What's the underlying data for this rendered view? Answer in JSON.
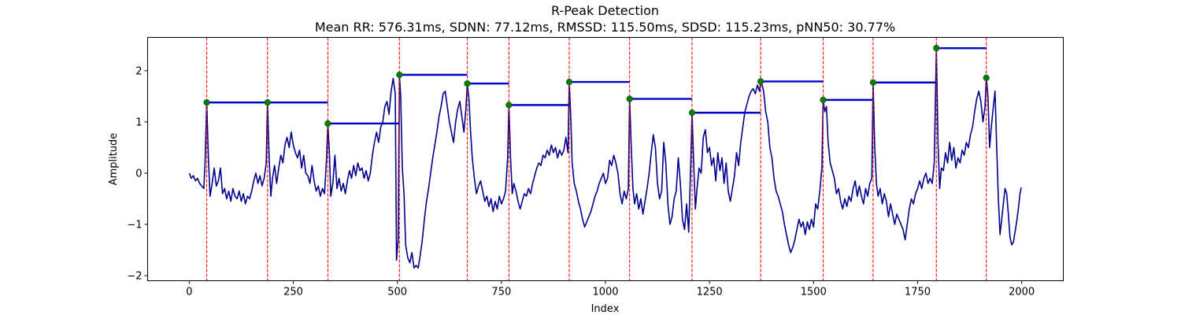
{
  "chart_data": {
    "type": "line",
    "title": "R-Peak Detection",
    "subtitle": "Mean RR: 576.31ms, SDNN: 77.12ms, RMSSD: 115.50ms, SDSD: 115.23ms, pNN50: 30.77%",
    "xlabel": "Index",
    "ylabel": "Amplitude",
    "xlim": [
      -100,
      2100
    ],
    "ylim": [
      -2.1,
      2.65
    ],
    "xticks": [
      0,
      250,
      500,
      750,
      1000,
      1250,
      1500,
      1750,
      2000
    ],
    "yticks": [
      -2,
      -1,
      0,
      1,
      2
    ],
    "grid": false,
    "colors": {
      "signal": "#00008b",
      "peak_line": "#ff0000",
      "peak_marker": "#008000",
      "rr_segment": "#0000cd"
    },
    "signal_key_points": [
      [
        0,
        0.0
      ],
      [
        5,
        -0.1
      ],
      [
        10,
        -0.05
      ],
      [
        15,
        -0.15
      ],
      [
        20,
        -0.1
      ],
      [
        25,
        -0.2
      ],
      [
        30,
        -0.25
      ],
      [
        35,
        -0.3
      ],
      [
        38,
        0.2
      ],
      [
        42,
        1.38
      ],
      [
        46,
        0.3
      ],
      [
        50,
        -0.45
      ],
      [
        55,
        -0.2
      ],
      [
        60,
        0.1
      ],
      [
        65,
        -0.25
      ],
      [
        70,
        -0.15
      ],
      [
        75,
        0.1
      ],
      [
        80,
        -0.4
      ],
      [
        85,
        -0.3
      ],
      [
        90,
        -0.5
      ],
      [
        95,
        -0.35
      ],
      [
        100,
        -0.55
      ],
      [
        105,
        -0.3
      ],
      [
        110,
        -0.45
      ],
      [
        115,
        -0.5
      ],
      [
        120,
        -0.35
      ],
      [
        125,
        -0.55
      ],
      [
        130,
        -0.4
      ],
      [
        135,
        -0.6
      ],
      [
        140,
        -0.45
      ],
      [
        145,
        -0.5
      ],
      [
        150,
        -0.35
      ],
      [
        155,
        -0.15
      ],
      [
        160,
        0.0
      ],
      [
        165,
        -0.2
      ],
      [
        170,
        -0.05
      ],
      [
        175,
        -0.25
      ],
      [
        180,
        -0.1
      ],
      [
        185,
        0.2
      ],
      [
        188,
        1.38
      ],
      [
        192,
        0.3
      ],
      [
        196,
        -0.45
      ],
      [
        200,
        -0.1
      ],
      [
        205,
        0.15
      ],
      [
        210,
        -0.2
      ],
      [
        215,
        0.1
      ],
      [
        220,
        0.35
      ],
      [
        225,
        0.2
      ],
      [
        230,
        0.55
      ],
      [
        235,
        0.7
      ],
      [
        240,
        0.5
      ],
      [
        245,
        0.8
      ],
      [
        250,
        0.55
      ],
      [
        255,
        0.4
      ],
      [
        260,
        0.3
      ],
      [
        265,
        0.45
      ],
      [
        270,
        0.1
      ],
      [
        275,
        0.35
      ],
      [
        280,
        0.0
      ],
      [
        285,
        -0.05
      ],
      [
        290,
        -0.2
      ],
      [
        295,
        0.15
      ],
      [
        300,
        -0.15
      ],
      [
        305,
        -0.35
      ],
      [
        310,
        -0.25
      ],
      [
        315,
        -0.45
      ],
      [
        320,
        -0.3
      ],
      [
        325,
        -0.4
      ],
      [
        330,
        0.3
      ],
      [
        333,
        0.97
      ],
      [
        337,
        0.35
      ],
      [
        340,
        -0.45
      ],
      [
        345,
        -0.2
      ],
      [
        350,
        0.35
      ],
      [
        355,
        -0.3
      ],
      [
        360,
        -0.1
      ],
      [
        365,
        -0.35
      ],
      [
        370,
        -0.2
      ],
      [
        375,
        -0.4
      ],
      [
        380,
        -0.15
      ],
      [
        385,
        0.05
      ],
      [
        390,
        -0.1
      ],
      [
        395,
        0.15
      ],
      [
        400,
        -0.05
      ],
      [
        405,
        0.2
      ],
      [
        410,
        0.05
      ],
      [
        415,
        0.1
      ],
      [
        420,
        -0.1
      ],
      [
        425,
        0.05
      ],
      [
        430,
        -0.15
      ],
      [
        435,
        0.0
      ],
      [
        440,
        0.35
      ],
      [
        445,
        0.6
      ],
      [
        450,
        0.8
      ],
      [
        455,
        0.6
      ],
      [
        460,
        0.9
      ],
      [
        465,
        1.0
      ],
      [
        470,
        1.3
      ],
      [
        475,
        1.4
      ],
      [
        480,
        1.15
      ],
      [
        485,
        1.6
      ],
      [
        490,
        1.85
      ],
      [
        495,
        1.55
      ],
      [
        498,
        -1.7
      ],
      [
        502,
        -1.3
      ],
      [
        505,
        1.92
      ],
      [
        508,
        1.5
      ],
      [
        512,
        0.1
      ],
      [
        516,
        -0.4
      ],
      [
        520,
        -1.4
      ],
      [
        525,
        -1.65
      ],
      [
        530,
        -1.75
      ],
      [
        535,
        -1.55
      ],
      [
        540,
        -1.85
      ],
      [
        545,
        -1.8
      ],
      [
        550,
        -1.85
      ],
      [
        555,
        -1.6
      ],
      [
        560,
        -1.3
      ],
      [
        565,
        -0.9
      ],
      [
        570,
        -0.55
      ],
      [
        575,
        -0.3
      ],
      [
        580,
        0.0
      ],
      [
        585,
        0.3
      ],
      [
        590,
        0.55
      ],
      [
        595,
        0.8
      ],
      [
        600,
        1.1
      ],
      [
        605,
        1.3
      ],
      [
        610,
        1.55
      ],
      [
        615,
        1.6
      ],
      [
        620,
        1.3
      ],
      [
        625,
        1.0
      ],
      [
        630,
        0.8
      ],
      [
        635,
        0.6
      ],
      [
        640,
        1.0
      ],
      [
        645,
        1.25
      ],
      [
        650,
        1.4
      ],
      [
        655,
        1.1
      ],
      [
        660,
        0.8
      ],
      [
        665,
        1.3
      ],
      [
        668,
        1.75
      ],
      [
        672,
        1.45
      ],
      [
        676,
        0.8
      ],
      [
        680,
        0.3
      ],
      [
        685,
        -0.1
      ],
      [
        690,
        -0.4
      ],
      [
        695,
        -0.25
      ],
      [
        700,
        -0.15
      ],
      [
        705,
        -0.35
      ],
      [
        710,
        -0.55
      ],
      [
        715,
        -0.45
      ],
      [
        720,
        -0.65
      ],
      [
        725,
        -0.5
      ],
      [
        730,
        -0.75
      ],
      [
        735,
        -0.55
      ],
      [
        740,
        -0.7
      ],
      [
        745,
        -0.45
      ],
      [
        750,
        -0.6
      ],
      [
        755,
        -0.5
      ],
      [
        760,
        -0.35
      ],
      [
        765,
        0.3
      ],
      [
        768,
        1.33
      ],
      [
        772,
        0.3
      ],
      [
        776,
        -0.4
      ],
      [
        780,
        -0.2
      ],
      [
        785,
        -0.35
      ],
      [
        790,
        -0.55
      ],
      [
        795,
        -0.7
      ],
      [
        800,
        -0.55
      ],
      [
        805,
        -0.4
      ],
      [
        810,
        -0.45
      ],
      [
        815,
        -0.3
      ],
      [
        820,
        -0.4
      ],
      [
        825,
        -0.2
      ],
      [
        830,
        -0.05
      ],
      [
        835,
        0.1
      ],
      [
        840,
        0.2
      ],
      [
        845,
        0.15
      ],
      [
        850,
        0.35
      ],
      [
        855,
        0.3
      ],
      [
        860,
        0.45
      ],
      [
        865,
        0.35
      ],
      [
        870,
        0.55
      ],
      [
        875,
        0.4
      ],
      [
        880,
        0.5
      ],
      [
        885,
        0.3
      ],
      [
        890,
        0.45
      ],
      [
        895,
        0.35
      ],
      [
        900,
        0.45
      ],
      [
        905,
        0.7
      ],
      [
        910,
        0.4
      ],
      [
        913,
        1.78
      ],
      [
        917,
        1.0
      ],
      [
        920,
        0.2
      ],
      [
        925,
        -0.2
      ],
      [
        930,
        -0.35
      ],
      [
        935,
        -0.55
      ],
      [
        940,
        -0.7
      ],
      [
        945,
        -0.9
      ],
      [
        950,
        -1.05
      ],
      [
        955,
        -0.95
      ],
      [
        960,
        -0.85
      ],
      [
        965,
        -0.75
      ],
      [
        970,
        -0.6
      ],
      [
        975,
        -0.45
      ],
      [
        980,
        -0.35
      ],
      [
        985,
        -0.2
      ],
      [
        990,
        -0.1
      ],
      [
        995,
        0.0
      ],
      [
        1000,
        -0.2
      ],
      [
        1005,
        -0.1
      ],
      [
        1010,
        0.25
      ],
      [
        1015,
        0.15
      ],
      [
        1020,
        0.35
      ],
      [
        1025,
        0.2
      ],
      [
        1030,
        0.0
      ],
      [
        1035,
        -0.4
      ],
      [
        1040,
        -0.6
      ],
      [
        1045,
        -0.35
      ],
      [
        1050,
        -0.5
      ],
      [
        1055,
        -0.3
      ],
      [
        1058,
        1.45
      ],
      [
        1062,
        0.5
      ],
      [
        1066,
        -0.3
      ],
      [
        1070,
        -0.6
      ],
      [
        1075,
        -0.4
      ],
      [
        1080,
        -0.7
      ],
      [
        1085,
        -0.5
      ],
      [
        1090,
        -0.8
      ],
      [
        1095,
        -0.55
      ],
      [
        1100,
        -0.3
      ],
      [
        1105,
        0.0
      ],
      [
        1110,
        0.4
      ],
      [
        1115,
        0.75
      ],
      [
        1120,
        0.5
      ],
      [
        1125,
        -0.2
      ],
      [
        1130,
        -0.5
      ],
      [
        1135,
        -0.35
      ],
      [
        1140,
        0.6
      ],
      [
        1145,
        0.2
      ],
      [
        1150,
        -0.6
      ],
      [
        1155,
        -1.0
      ],
      [
        1160,
        -0.85
      ],
      [
        1165,
        -0.5
      ],
      [
        1170,
        -0.35
      ],
      [
        1175,
        0.3
      ],
      [
        1180,
        -0.2
      ],
      [
        1185,
        -0.9
      ],
      [
        1190,
        -1.1
      ],
      [
        1195,
        -0.6
      ],
      [
        1200,
        -1.15
      ],
      [
        1205,
        0.2
      ],
      [
        1208,
        1.18
      ],
      [
        1212,
        0.2
      ],
      [
        1216,
        -0.7
      ],
      [
        1220,
        -0.3
      ],
      [
        1225,
        0.1
      ],
      [
        1230,
        0.0
      ],
      [
        1235,
        0.7
      ],
      [
        1240,
        0.85
      ],
      [
        1245,
        0.4
      ],
      [
        1250,
        0.5
      ],
      [
        1255,
        0.15
      ],
      [
        1260,
        0.3
      ],
      [
        1265,
        -0.15
      ],
      [
        1270,
        0.4
      ],
      [
        1275,
        0.05
      ],
      [
        1280,
        0.3
      ],
      [
        1285,
        -0.2
      ],
      [
        1290,
        0.2
      ],
      [
        1295,
        -0.35
      ],
      [
        1300,
        -0.55
      ],
      [
        1305,
        -0.3
      ],
      [
        1310,
        -0.05
      ],
      [
        1315,
        0.4
      ],
      [
        1320,
        0.15
      ],
      [
        1325,
        0.6
      ],
      [
        1330,
        0.9
      ],
      [
        1335,
        1.2
      ],
      [
        1340,
        1.35
      ],
      [
        1345,
        1.5
      ],
      [
        1350,
        1.6
      ],
      [
        1355,
        1.65
      ],
      [
        1360,
        1.55
      ],
      [
        1365,
        1.72
      ],
      [
        1370,
        1.6
      ],
      [
        1373,
        1.79
      ],
      [
        1377,
        1.7
      ],
      [
        1380,
        1.6
      ],
      [
        1385,
        1.2
      ],
      [
        1390,
        1.0
      ],
      [
        1395,
        0.5
      ],
      [
        1400,
        0.3
      ],
      [
        1405,
        -0.1
      ],
      [
        1410,
        -0.35
      ],
      [
        1415,
        -0.45
      ],
      [
        1420,
        -0.6
      ],
      [
        1425,
        -0.75
      ],
      [
        1430,
        -1.0
      ],
      [
        1435,
        -1.2
      ],
      [
        1440,
        -1.4
      ],
      [
        1445,
        -1.55
      ],
      [
        1450,
        -1.45
      ],
      [
        1455,
        -1.3
      ],
      [
        1460,
        -1.1
      ],
      [
        1465,
        -0.9
      ],
      [
        1470,
        -1.05
      ],
      [
        1475,
        -0.95
      ],
      [
        1480,
        -1.2
      ],
      [
        1485,
        -0.95
      ],
      [
        1490,
        -1.1
      ],
      [
        1495,
        -0.9
      ],
      [
        1500,
        -1.05
      ],
      [
        1505,
        -0.6
      ],
      [
        1510,
        -0.7
      ],
      [
        1515,
        -0.35
      ],
      [
        1520,
        0.1
      ],
      [
        1523,
        1.43
      ],
      [
        1527,
        1.2
      ],
      [
        1531,
        1.3
      ],
      [
        1535,
        0.6
      ],
      [
        1540,
        0.2
      ],
      [
        1545,
        0.05
      ],
      [
        1550,
        -0.1
      ],
      [
        1555,
        -0.4
      ],
      [
        1560,
        -0.3
      ],
      [
        1565,
        -0.55
      ],
      [
        1570,
        -0.7
      ],
      [
        1575,
        -0.5
      ],
      [
        1580,
        -0.65
      ],
      [
        1585,
        -0.45
      ],
      [
        1590,
        -0.55
      ],
      [
        1595,
        -0.3
      ],
      [
        1600,
        -0.15
      ],
      [
        1605,
        -0.45
      ],
      [
        1610,
        -0.25
      ],
      [
        1615,
        -0.45
      ],
      [
        1620,
        -0.6
      ],
      [
        1625,
        -0.3
      ],
      [
        1630,
        -0.45
      ],
      [
        1635,
        -0.2
      ],
      [
        1640,
        -0.1
      ],
      [
        1643,
        1.77
      ],
      [
        1647,
        0.5
      ],
      [
        1651,
        -0.2
      ],
      [
        1655,
        -0.45
      ],
      [
        1660,
        -0.3
      ],
      [
        1665,
        -0.6
      ],
      [
        1670,
        -0.4
      ],
      [
        1675,
        -0.55
      ],
      [
        1680,
        -0.85
      ],
      [
        1685,
        -0.6
      ],
      [
        1690,
        -0.8
      ],
      [
        1695,
        -1.0
      ],
      [
        1700,
        -0.8
      ],
      [
        1705,
        -0.9
      ],
      [
        1710,
        -1.0
      ],
      [
        1715,
        -1.1
      ],
      [
        1720,
        -1.3
      ],
      [
        1725,
        -1.0
      ],
      [
        1730,
        -0.7
      ],
      [
        1735,
        -0.5
      ],
      [
        1740,
        -0.6
      ],
      [
        1745,
        -0.4
      ],
      [
        1750,
        -0.3
      ],
      [
        1755,
        -0.15
      ],
      [
        1760,
        -0.3
      ],
      [
        1765,
        -0.1
      ],
      [
        1770,
        0.0
      ],
      [
        1775,
        -0.2
      ],
      [
        1780,
        -0.1
      ],
      [
        1785,
        -0.2
      ],
      [
        1790,
        0.2
      ],
      [
        1795,
        2.44
      ],
      [
        1799,
        0.6
      ],
      [
        1803,
        -0.3
      ],
      [
        1807,
        0.1
      ],
      [
        1812,
        0.05
      ],
      [
        1817,
        0.4
      ],
      [
        1822,
        0.2
      ],
      [
        1827,
        0.6
      ],
      [
        1832,
        0.25
      ],
      [
        1837,
        0.5
      ],
      [
        1842,
        0.1
      ],
      [
        1847,
        0.3
      ],
      [
        1852,
        0.2
      ],
      [
        1857,
        0.45
      ],
      [
        1862,
        0.35
      ],
      [
        1867,
        0.6
      ],
      [
        1872,
        0.5
      ],
      [
        1877,
        0.75
      ],
      [
        1882,
        0.9
      ],
      [
        1887,
        1.2
      ],
      [
        1892,
        1.45
      ],
      [
        1897,
        1.6
      ],
      [
        1902,
        1.4
      ],
      [
        1907,
        1.0
      ],
      [
        1912,
        1.3
      ],
      [
        1915,
        1.86
      ],
      [
        1919,
        1.5
      ],
      [
        1923,
        0.5
      ],
      [
        1927,
        0.9
      ],
      [
        1932,
        1.3
      ],
      [
        1936,
        1.6
      ],
      [
        1940,
        0.5
      ],
      [
        1944,
        -0.5
      ],
      [
        1948,
        -1.2
      ],
      [
        1952,
        -0.9
      ],
      [
        1956,
        -0.6
      ],
      [
        1960,
        -0.3
      ],
      [
        1964,
        -0.4
      ],
      [
        1968,
        -0.8
      ],
      [
        1972,
        -1.25
      ],
      [
        1976,
        -1.4
      ],
      [
        1980,
        -1.35
      ],
      [
        1984,
        -1.15
      ],
      [
        1988,
        -0.95
      ],
      [
        1992,
        -0.7
      ],
      [
        1996,
        -0.4
      ],
      [
        1999,
        -0.28
      ]
    ],
    "r_peaks": [
      {
        "x": 42,
        "y": 1.38
      },
      {
        "x": 188,
        "y": 1.38
      },
      {
        "x": 333,
        "y": 0.97
      },
      {
        "x": 505,
        "y": 1.92
      },
      {
        "x": 668,
        "y": 1.75
      },
      {
        "x": 768,
        "y": 1.33
      },
      {
        "x": 913,
        "y": 1.78
      },
      {
        "x": 1058,
        "y": 1.45
      },
      {
        "x": 1208,
        "y": 1.18
      },
      {
        "x": 1373,
        "y": 1.79
      },
      {
        "x": 1523,
        "y": 1.43
      },
      {
        "x": 1643,
        "y": 1.77
      },
      {
        "x": 1795,
        "y": 2.44
      },
      {
        "x": 1915,
        "y": 1.86
      }
    ]
  }
}
